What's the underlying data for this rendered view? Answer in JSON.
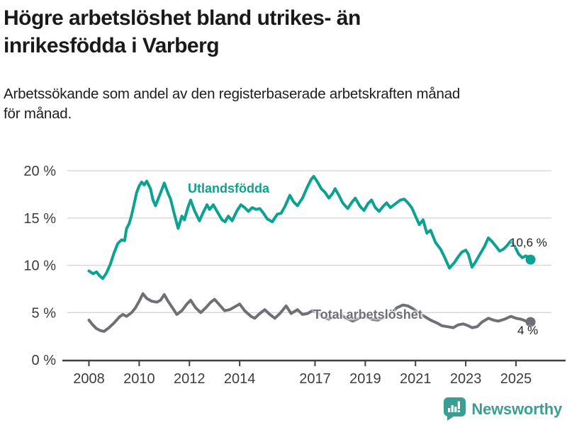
{
  "title": {
    "line1": "Högre arbetslöshet bland utrikes- än",
    "line2": "inrikesfödda i Varberg"
  },
  "subtitle": {
    "line1": "Arbetssökande som andel av den registerbaserade arbetskraften månad",
    "line2": "för månad."
  },
  "chart_data": {
    "type": "line",
    "title": "Högre arbetslöshet bland utrikes- än inrikesfödda i Varberg",
    "subtitle": "Arbetssökande som andel av den registerbaserade arbetskraften månad för månad.",
    "xlabel": "",
    "ylabel": "",
    "xlim": [
      2007.14,
      2026.41
    ],
    "ylim": [
      0,
      20
    ],
    "x_ticks": [
      2008,
      2010,
      2012,
      2014,
      2017,
      2019,
      2021,
      2023,
      2025
    ],
    "y_ticks": {
      "values": [
        0,
        5,
        10,
        15,
        20
      ],
      "labels": [
        "0 %",
        "5 %",
        "10 %",
        "15 %",
        "20 %"
      ]
    },
    "grid": "horizontal",
    "legend_position": "inline-labels",
    "series": [
      {
        "name": "Utlandsfödda",
        "color": "#0ba291",
        "end_label": "10,6 %",
        "end_value": 10.6,
        "points": [
          [
            2008.0,
            9.4
          ],
          [
            2008.17,
            9.1
          ],
          [
            2008.3,
            9.3
          ],
          [
            2008.42,
            8.9
          ],
          [
            2008.55,
            8.6
          ],
          [
            2008.7,
            9.2
          ],
          [
            2008.85,
            10.1
          ],
          [
            2009.0,
            11.3
          ],
          [
            2009.15,
            12.3
          ],
          [
            2009.3,
            12.7
          ],
          [
            2009.42,
            12.6
          ],
          [
            2009.5,
            13.9
          ],
          [
            2009.6,
            14.4
          ],
          [
            2009.7,
            15.3
          ],
          [
            2009.8,
            16.5
          ],
          [
            2009.9,
            17.7
          ],
          [
            2010.0,
            18.4
          ],
          [
            2010.1,
            18.8
          ],
          [
            2010.2,
            18.5
          ],
          [
            2010.3,
            18.9
          ],
          [
            2010.45,
            18.1
          ],
          [
            2010.55,
            16.9
          ],
          [
            2010.65,
            16.3
          ],
          [
            2010.8,
            17.3
          ],
          [
            2010.9,
            18.0
          ],
          [
            2011.0,
            18.7
          ],
          [
            2011.15,
            17.6
          ],
          [
            2011.25,
            17.0
          ],
          [
            2011.4,
            15.4
          ],
          [
            2011.55,
            13.9
          ],
          [
            2011.7,
            15.2
          ],
          [
            2011.8,
            14.8
          ],
          [
            2011.95,
            16.2
          ],
          [
            2012.05,
            16.9
          ],
          [
            2012.2,
            15.8
          ],
          [
            2012.4,
            14.7
          ],
          [
            2012.55,
            15.6
          ],
          [
            2012.7,
            16.4
          ],
          [
            2012.8,
            15.9
          ],
          [
            2012.95,
            16.4
          ],
          [
            2013.1,
            15.7
          ],
          [
            2013.3,
            14.8
          ],
          [
            2013.42,
            14.6
          ],
          [
            2013.55,
            15.2
          ],
          [
            2013.7,
            14.7
          ],
          [
            2013.9,
            15.8
          ],
          [
            2014.05,
            16.4
          ],
          [
            2014.2,
            16.1
          ],
          [
            2014.35,
            15.7
          ],
          [
            2014.5,
            16.1
          ],
          [
            2014.65,
            15.9
          ],
          [
            2014.8,
            16.0
          ],
          [
            2014.95,
            15.5
          ],
          [
            2015.1,
            14.9
          ],
          [
            2015.3,
            14.6
          ],
          [
            2015.5,
            15.4
          ],
          [
            2015.65,
            15.5
          ],
          [
            2015.8,
            16.2
          ],
          [
            2016.0,
            17.4
          ],
          [
            2016.15,
            16.7
          ],
          [
            2016.3,
            16.3
          ],
          [
            2016.5,
            17.1
          ],
          [
            2016.7,
            18.3
          ],
          [
            2016.85,
            19.1
          ],
          [
            2016.95,
            19.4
          ],
          [
            2017.1,
            18.8
          ],
          [
            2017.25,
            18.1
          ],
          [
            2017.4,
            17.7
          ],
          [
            2017.55,
            17.1
          ],
          [
            2017.7,
            17.6
          ],
          [
            2017.8,
            18.1
          ],
          [
            2017.95,
            17.4
          ],
          [
            2018.1,
            16.6
          ],
          [
            2018.3,
            16.0
          ],
          [
            2018.45,
            16.6
          ],
          [
            2018.6,
            17.1
          ],
          [
            2018.8,
            16.2
          ],
          [
            2018.95,
            15.8
          ],
          [
            2019.1,
            16.5
          ],
          [
            2019.25,
            16.9
          ],
          [
            2019.4,
            16.1
          ],
          [
            2019.55,
            15.7
          ],
          [
            2019.7,
            16.2
          ],
          [
            2019.85,
            16.6
          ],
          [
            2020.0,
            16.1
          ],
          [
            2020.2,
            16.5
          ],
          [
            2020.4,
            16.9
          ],
          [
            2020.55,
            17.0
          ],
          [
            2020.7,
            16.6
          ],
          [
            2020.85,
            16.1
          ],
          [
            2021.0,
            15.2
          ],
          [
            2021.15,
            14.3
          ],
          [
            2021.3,
            14.8
          ],
          [
            2021.45,
            13.4
          ],
          [
            2021.6,
            13.7
          ],
          [
            2021.8,
            12.4
          ],
          [
            2022.0,
            11.7
          ],
          [
            2022.15,
            10.9
          ],
          [
            2022.35,
            9.7
          ],
          [
            2022.55,
            10.3
          ],
          [
            2022.7,
            10.9
          ],
          [
            2022.85,
            11.4
          ],
          [
            2023.0,
            11.6
          ],
          [
            2023.1,
            11.2
          ],
          [
            2023.25,
            9.8
          ],
          [
            2023.4,
            10.4
          ],
          [
            2023.55,
            11.1
          ],
          [
            2023.75,
            12.0
          ],
          [
            2023.9,
            12.9
          ],
          [
            2024.05,
            12.5
          ],
          [
            2024.2,
            12.0
          ],
          [
            2024.35,
            11.5
          ],
          [
            2024.5,
            11.7
          ],
          [
            2024.65,
            12.1
          ],
          [
            2024.8,
            12.6
          ],
          [
            2024.95,
            12.0
          ],
          [
            2025.1,
            11.2
          ],
          [
            2025.25,
            10.8
          ],
          [
            2025.4,
            11.0
          ],
          [
            2025.58,
            10.6
          ]
        ]
      },
      {
        "name": "Total arbetslöshet",
        "color": "#6e7076",
        "end_label": "4 %",
        "end_value": 4.0,
        "points": [
          [
            2008.0,
            4.2
          ],
          [
            2008.15,
            3.7
          ],
          [
            2008.3,
            3.3
          ],
          [
            2008.45,
            3.1
          ],
          [
            2008.6,
            3.0
          ],
          [
            2008.8,
            3.4
          ],
          [
            2009.0,
            3.9
          ],
          [
            2009.2,
            4.5
          ],
          [
            2009.35,
            4.8
          ],
          [
            2009.5,
            4.6
          ],
          [
            2009.7,
            5.0
          ],
          [
            2009.85,
            5.5
          ],
          [
            2010.0,
            6.2
          ],
          [
            2010.15,
            7.0
          ],
          [
            2010.3,
            6.5
          ],
          [
            2010.5,
            6.2
          ],
          [
            2010.7,
            6.1
          ],
          [
            2010.85,
            6.3
          ],
          [
            2011.0,
            6.9
          ],
          [
            2011.15,
            6.2
          ],
          [
            2011.3,
            5.6
          ],
          [
            2011.5,
            4.8
          ],
          [
            2011.7,
            5.2
          ],
          [
            2011.9,
            5.9
          ],
          [
            2012.05,
            6.3
          ],
          [
            2012.25,
            5.5
          ],
          [
            2012.45,
            5.0
          ],
          [
            2012.65,
            5.5
          ],
          [
            2012.85,
            6.1
          ],
          [
            2013.0,
            6.4
          ],
          [
            2013.2,
            5.8
          ],
          [
            2013.4,
            5.2
          ],
          [
            2013.6,
            5.3
          ],
          [
            2013.8,
            5.6
          ],
          [
            2014.0,
            5.9
          ],
          [
            2014.2,
            5.2
          ],
          [
            2014.45,
            4.6
          ],
          [
            2014.6,
            4.4
          ],
          [
            2014.8,
            4.9
          ],
          [
            2015.0,
            5.3
          ],
          [
            2015.2,
            4.8
          ],
          [
            2015.4,
            4.4
          ],
          [
            2015.6,
            4.9
          ],
          [
            2015.85,
            5.7
          ],
          [
            2016.05,
            4.9
          ],
          [
            2016.3,
            5.3
          ],
          [
            2016.5,
            4.8
          ],
          [
            2016.7,
            4.9
          ],
          [
            2016.9,
            5.2
          ],
          [
            2017.1,
            5.0
          ],
          [
            2017.35,
            4.5
          ],
          [
            2017.55,
            4.3
          ],
          [
            2017.8,
            4.7
          ],
          [
            2018.0,
            4.8
          ],
          [
            2018.25,
            4.4
          ],
          [
            2018.5,
            4.1
          ],
          [
            2018.75,
            4.4
          ],
          [
            2019.0,
            4.6
          ],
          [
            2019.25,
            4.3
          ],
          [
            2019.5,
            4.2
          ],
          [
            2019.75,
            4.5
          ],
          [
            2020.0,
            4.8
          ],
          [
            2020.25,
            5.5
          ],
          [
            2020.5,
            5.8
          ],
          [
            2020.7,
            5.7
          ],
          [
            2020.9,
            5.4
          ],
          [
            2021.1,
            5.0
          ],
          [
            2021.35,
            4.6
          ],
          [
            2021.6,
            4.2
          ],
          [
            2021.85,
            3.9
          ],
          [
            2022.05,
            3.6
          ],
          [
            2022.3,
            3.5
          ],
          [
            2022.5,
            3.4
          ],
          [
            2022.7,
            3.7
          ],
          [
            2022.9,
            3.8
          ],
          [
            2023.1,
            3.6
          ],
          [
            2023.25,
            3.4
          ],
          [
            2023.45,
            3.5
          ],
          [
            2023.65,
            4.0
          ],
          [
            2023.9,
            4.4
          ],
          [
            2024.1,
            4.2
          ],
          [
            2024.3,
            4.1
          ],
          [
            2024.55,
            4.3
          ],
          [
            2024.8,
            4.6
          ],
          [
            2025.0,
            4.4
          ],
          [
            2025.2,
            4.3
          ],
          [
            2025.4,
            4.1
          ],
          [
            2025.58,
            4.0
          ]
        ]
      }
    ]
  },
  "footer": {
    "logo_text": "Newsworthy",
    "logo_icon": "bar-chart-speech-bubble-icon",
    "logo_color": "#3b9e92"
  },
  "colors": {
    "accent_teal": "#0ba291",
    "series_gray": "#6e7076",
    "gridline": "#d9d9d9",
    "axis": "#404040",
    "axis_text": "#3d3d3d",
    "text": "#1a1a1a"
  }
}
